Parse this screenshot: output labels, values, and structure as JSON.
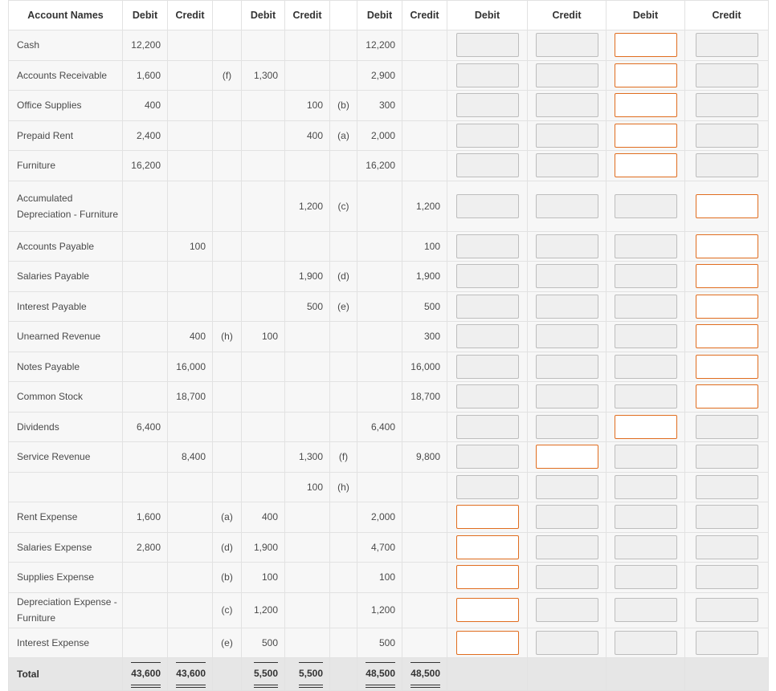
{
  "headers": [
    "Account Names",
    "Debit",
    "Credit",
    "",
    "Debit",
    "Credit",
    "",
    "Debit",
    "Credit",
    "Debit",
    "Credit",
    "Debit",
    "Credit"
  ],
  "rows": [
    {
      "name": "Cash",
      "tb_debit": "12,200",
      "tb_credit": "",
      "adj_dr_ref": "",
      "adj_debit": "",
      "adj_credit": "",
      "adj_cr_ref": "",
      "atb_debit": "12,200",
      "atb_credit": "",
      "inputs": [
        "plain",
        "plain",
        "req",
        "plain"
      ]
    },
    {
      "name": "Accounts Receivable",
      "tb_debit": "1,600",
      "tb_credit": "",
      "adj_dr_ref": "(f)",
      "adj_debit": "1,300",
      "adj_credit": "",
      "adj_cr_ref": "",
      "atb_debit": "2,900",
      "atb_credit": "",
      "inputs": [
        "plain",
        "plain",
        "req",
        "plain"
      ]
    },
    {
      "name": "Office Supplies",
      "tb_debit": "400",
      "tb_credit": "",
      "adj_dr_ref": "",
      "adj_debit": "",
      "adj_credit": "100",
      "adj_cr_ref": "(b)",
      "atb_debit": "300",
      "atb_credit": "",
      "inputs": [
        "plain",
        "plain",
        "req",
        "plain"
      ]
    },
    {
      "name": "Prepaid Rent",
      "tb_debit": "2,400",
      "tb_credit": "",
      "adj_dr_ref": "",
      "adj_debit": "",
      "adj_credit": "400",
      "adj_cr_ref": "(a)",
      "atb_debit": "2,000",
      "atb_credit": "",
      "inputs": [
        "plain",
        "plain",
        "req",
        "plain"
      ]
    },
    {
      "name": "Furniture",
      "tb_debit": "16,200",
      "tb_credit": "",
      "adj_dr_ref": "",
      "adj_debit": "",
      "adj_credit": "",
      "adj_cr_ref": "",
      "atb_debit": "16,200",
      "atb_credit": "",
      "inputs": [
        "plain",
        "plain",
        "req",
        "plain"
      ]
    },
    {
      "name": "Accumulated Depreciation - Furniture",
      "tall": true,
      "tb_debit": "",
      "tb_credit": "",
      "adj_dr_ref": "",
      "adj_debit": "",
      "adj_credit": "1,200",
      "adj_cr_ref": "(c)",
      "atb_debit": "",
      "atb_credit": "1,200",
      "inputs": [
        "plain",
        "plain",
        "plain",
        "req"
      ]
    },
    {
      "name": "Accounts Payable",
      "tb_debit": "",
      "tb_credit": "100",
      "adj_dr_ref": "",
      "adj_debit": "",
      "adj_credit": "",
      "adj_cr_ref": "",
      "atb_debit": "",
      "atb_credit": "100",
      "inputs": [
        "plain",
        "plain",
        "plain",
        "req"
      ]
    },
    {
      "name": "Salaries Payable",
      "tb_debit": "",
      "tb_credit": "",
      "adj_dr_ref": "",
      "adj_debit": "",
      "adj_credit": "1,900",
      "adj_cr_ref": "(d)",
      "atb_debit": "",
      "atb_credit": "1,900",
      "inputs": [
        "plain",
        "plain",
        "plain",
        "req"
      ]
    },
    {
      "name": "Interest Payable",
      "tb_debit": "",
      "tb_credit": "",
      "adj_dr_ref": "",
      "adj_debit": "",
      "adj_credit": "500",
      "adj_cr_ref": "(e)",
      "atb_debit": "",
      "atb_credit": "500",
      "inputs": [
        "plain",
        "plain",
        "plain",
        "req"
      ]
    },
    {
      "name": "Unearned Revenue",
      "tb_debit": "",
      "tb_credit": "400",
      "adj_dr_ref": "(h)",
      "adj_debit": "100",
      "adj_credit": "",
      "adj_cr_ref": "",
      "atb_debit": "",
      "atb_credit": "300",
      "inputs": [
        "plain",
        "plain",
        "plain",
        "req"
      ]
    },
    {
      "name": "Notes Payable",
      "tb_debit": "",
      "tb_credit": "16,000",
      "adj_dr_ref": "",
      "adj_debit": "",
      "adj_credit": "",
      "adj_cr_ref": "",
      "atb_debit": "",
      "atb_credit": "16,000",
      "inputs": [
        "plain",
        "plain",
        "plain",
        "req"
      ]
    },
    {
      "name": "Common Stock",
      "tb_debit": "",
      "tb_credit": "18,700",
      "adj_dr_ref": "",
      "adj_debit": "",
      "adj_credit": "",
      "adj_cr_ref": "",
      "atb_debit": "",
      "atb_credit": "18,700",
      "inputs": [
        "plain",
        "plain",
        "plain",
        "req"
      ]
    },
    {
      "name": "Dividends",
      "tb_debit": "6,400",
      "tb_credit": "",
      "adj_dr_ref": "",
      "adj_debit": "",
      "adj_credit": "",
      "adj_cr_ref": "",
      "atb_debit": "6,400",
      "atb_credit": "",
      "inputs": [
        "plain",
        "plain",
        "req",
        "plain"
      ]
    },
    {
      "name": "Service Revenue",
      "tb_debit": "",
      "tb_credit": "8,400",
      "adj_dr_ref": "",
      "adj_debit": "",
      "adj_credit": "1,300",
      "adj_cr_ref": "(f)",
      "atb_debit": "",
      "atb_credit": "9,800",
      "inputs": [
        "plain",
        "req",
        "plain",
        "plain"
      ]
    },
    {
      "name": "",
      "tb_debit": "",
      "tb_credit": "",
      "adj_dr_ref": "",
      "adj_debit": "",
      "adj_credit": "100",
      "adj_cr_ref": "(h)",
      "atb_debit": "",
      "atb_credit": "",
      "inputs": [
        "plain",
        "plain",
        "plain",
        "plain"
      ]
    },
    {
      "name": "Rent Expense",
      "tb_debit": "1,600",
      "tb_credit": "",
      "adj_dr_ref": "(a)",
      "adj_debit": "400",
      "adj_credit": "",
      "adj_cr_ref": "",
      "atb_debit": "2,000",
      "atb_credit": "",
      "inputs": [
        "req",
        "plain",
        "plain",
        "plain"
      ]
    },
    {
      "name": "Salaries Expense",
      "tb_debit": "2,800",
      "tb_credit": "",
      "adj_dr_ref": "(d)",
      "adj_debit": "1,900",
      "adj_credit": "",
      "adj_cr_ref": "",
      "atb_debit": "4,700",
      "atb_credit": "",
      "inputs": [
        "req",
        "plain",
        "plain",
        "plain"
      ]
    },
    {
      "name": "Supplies Expense",
      "tb_debit": "",
      "tb_credit": "",
      "adj_dr_ref": "(b)",
      "adj_debit": "100",
      "adj_credit": "",
      "adj_cr_ref": "",
      "atb_debit": "100",
      "atb_credit": "",
      "inputs": [
        "req",
        "plain",
        "plain",
        "plain"
      ]
    },
    {
      "name": "Depreciation Expense - Furniture",
      "mid": true,
      "tb_debit": "",
      "tb_credit": "",
      "adj_dr_ref": "(c)",
      "adj_debit": "1,200",
      "adj_credit": "",
      "adj_cr_ref": "",
      "atb_debit": "1,200",
      "atb_credit": "",
      "inputs": [
        "req",
        "plain",
        "plain",
        "plain"
      ]
    },
    {
      "name": "Interest Expense",
      "tb_debit": "",
      "tb_credit": "",
      "adj_dr_ref": "(e)",
      "adj_debit": "500",
      "adj_credit": "",
      "adj_cr_ref": "",
      "atb_debit": "500",
      "atb_credit": "",
      "inputs": [
        "req",
        "plain",
        "plain",
        "plain"
      ]
    }
  ],
  "total": {
    "label": "Total",
    "tb_debit": "43,600",
    "tb_credit": "43,600",
    "adj_debit": "5,500",
    "adj_credit": "5,500",
    "atb_debit": "48,500",
    "atb_credit": "48,500"
  },
  "colors": {
    "required_border": "#e06d1f",
    "input_bg": "#efefef",
    "row_bg": "#f7f7f7",
    "total_bg": "#e6e6e6"
  }
}
